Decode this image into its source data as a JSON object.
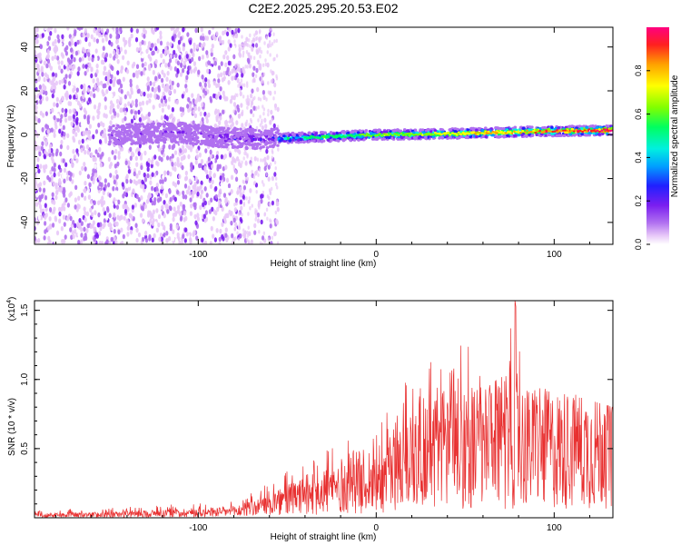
{
  "title": "C2E2.2025.295.20.53.E02",
  "chart_data": [
    {
      "type": "heatmap",
      "xlabel": "Height of straight line (km)",
      "ylabel": "Frequency (Hz)",
      "xlim": [
        -192,
        133
      ],
      "ylim": [
        -50,
        49
      ],
      "xticks": [
        -100,
        0,
        100
      ],
      "yticks": [
        -40,
        -20,
        0,
        20,
        40
      ],
      "colorbar": {
        "label": "Normalized spectral amplitude",
        "range": [
          0,
          1
        ],
        "ticks": [
          "0.0",
          "0.2",
          "0.4",
          "0.6",
          "0.8"
        ],
        "colors": [
          "#ffffff",
          "#e8c8f8",
          "#b070f0",
          "#7a1ef0",
          "#2020ff",
          "#00a0ff",
          "#00f0e0",
          "#00ff60",
          "#80ff00",
          "#ffff00",
          "#ffa000",
          "#ff2020",
          "#ff0080"
        ]
      },
      "features": {
        "noise_region_x": [
          -192,
          -55
        ],
        "band_centerline_hz": [
          [
            -150,
            0
          ],
          [
            -110,
            1
          ],
          [
            -90,
            -1
          ],
          [
            -70,
            -2
          ],
          [
            -50,
            -1.5
          ],
          [
            -30,
            -1
          ],
          [
            0,
            0
          ],
          [
            30,
            0.3
          ],
          [
            60,
            0.8
          ],
          [
            90,
            1.5
          ],
          [
            133,
            2
          ]
        ]
      }
    },
    {
      "type": "line",
      "xlabel": "Height of straight line (km)",
      "ylabel": "SNR (10 * v/v)",
      "y_scale_label": "(x10",
      "y_scale_exp": "4",
      "y_scale_close": ")",
      "xlim": [
        -192,
        133
      ],
      "ylim": [
        0,
        1.57
      ],
      "xticks": [
        -100,
        0,
        100
      ],
      "yticks": [
        "0.5",
        "1.0",
        "1.5"
      ],
      "color": "#e83030",
      "envelope": {
        "x": [
          -192,
          -150,
          -110,
          -80,
          -60,
          -40,
          -20,
          0,
          20,
          40,
          50,
          60,
          70,
          78,
          85,
          95,
          110,
          120,
          133
        ],
        "y_max": [
          0.06,
          0.07,
          0.1,
          0.12,
          0.25,
          0.45,
          0.55,
          0.65,
          1.05,
          1.25,
          1.3,
          1.0,
          1.1,
          1.57,
          0.95,
          0.95,
          0.9,
          0.85,
          0.8
        ],
        "y_mean": [
          0.02,
          0.025,
          0.04,
          0.05,
          0.1,
          0.18,
          0.25,
          0.32,
          0.5,
          0.6,
          0.6,
          0.55,
          0.6,
          0.65,
          0.55,
          0.55,
          0.55,
          0.55,
          0.6
        ]
      }
    }
  ]
}
